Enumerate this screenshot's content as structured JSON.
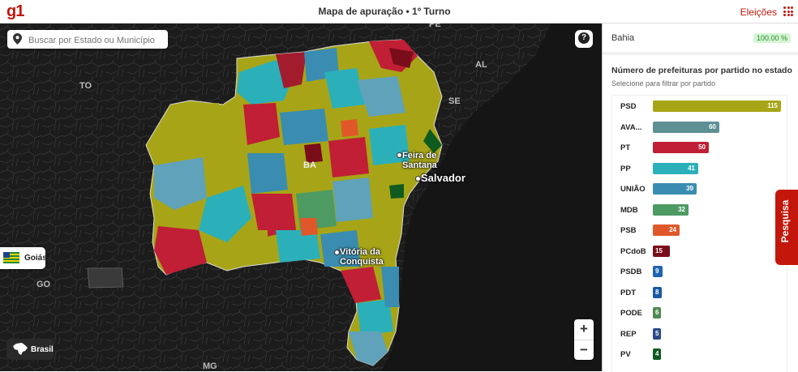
{
  "header": {
    "logo": "g1",
    "title": "Mapa de apuração • 1º Turno",
    "elections_link": "Eleições"
  },
  "map": {
    "search_placeholder": "Buscar por Estado ou Município",
    "help_label": "?",
    "labels": [
      "PE",
      "AL",
      "SE",
      "TO",
      "GO",
      "MG",
      "BA"
    ],
    "cities": [
      "Feira de Santana",
      "Salvador",
      "Vitória da Conquista"
    ],
    "goias_button": "Goiás",
    "brasil_button": "Brasil",
    "zoom_in": "+",
    "zoom_out": "−"
  },
  "panel": {
    "state_name": "Bahia",
    "progress": "100.00 %",
    "progress_value": 100,
    "title": "Número de prefeituras por partido no estado",
    "subtitle": "Selecione para filtrar por partido",
    "parties": [
      {
        "name": "PSD",
        "count": 115,
        "color": "#a6a516"
      },
      {
        "name": "AVA...",
        "count": 60,
        "color": "#5d8f95"
      },
      {
        "name": "PT",
        "count": 50,
        "color": "#c01f35"
      },
      {
        "name": "PP",
        "count": 41,
        "color": "#2bb0ba"
      },
      {
        "name": "UNIÃO",
        "count": 39,
        "color": "#3a8db0"
      },
      {
        "name": "MDB",
        "count": 32,
        "color": "#4e9a63"
      },
      {
        "name": "PSB",
        "count": 24,
        "color": "#e0582a"
      },
      {
        "name": "PCdoB",
        "count": 15,
        "color": "#7a0d1a"
      },
      {
        "name": "PSDB",
        "count": 9,
        "color": "#1e64b0"
      },
      {
        "name": "PDT",
        "count": 8,
        "color": "#1a5aa0"
      },
      {
        "name": "PODE",
        "count": 6,
        "color": "#4f8a4f"
      },
      {
        "name": "REP",
        "count": 5,
        "color": "#2a4a8a"
      },
      {
        "name": "PV",
        "count": 4,
        "color": "#0f5a1f"
      }
    ]
  },
  "feedback_tab": "Pesquisa"
}
